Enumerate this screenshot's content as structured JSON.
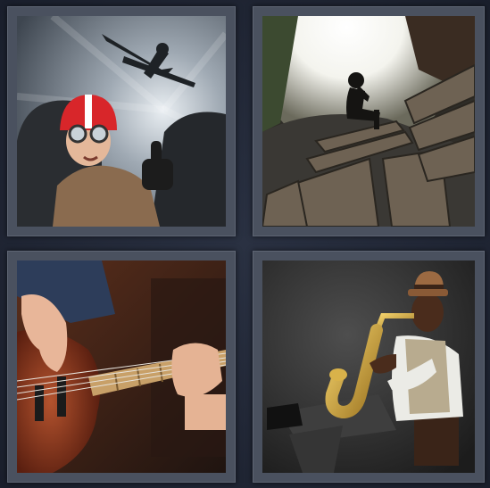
{
  "puzzle": {
    "tiles": [
      {
        "subject": "pilot-with-airplane"
      },
      {
        "subject": "person-sitting-on-bench"
      },
      {
        "subject": "bass-guitar-player"
      },
      {
        "subject": "saxophone-player"
      }
    ]
  }
}
